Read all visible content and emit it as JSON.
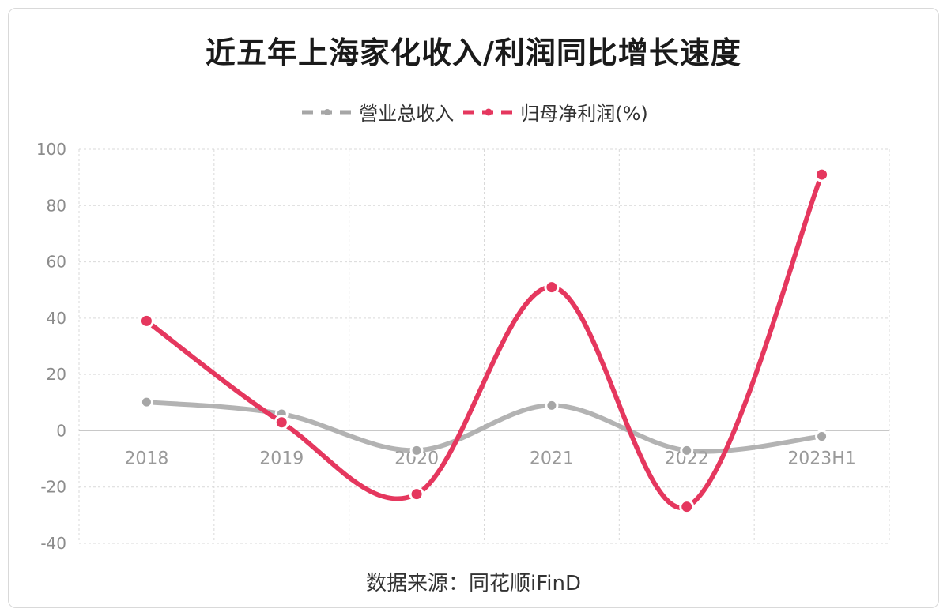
{
  "chart_data": {
    "type": "line",
    "title": "近五年上海家化收入/利润同比增长速度",
    "categories": [
      "2018",
      "2019",
      "2020",
      "2021",
      "2022",
      "2023H1"
    ],
    "series": [
      {
        "name": "營业总收入",
        "values": [
          10.2,
          6.0,
          -7.0,
          9.0,
          -7.0,
          -2.0
        ],
        "color": "#a6a6a6",
        "style": "smooth-dashed-marker"
      },
      {
        "name": "归母净利润(%)",
        "values": [
          39.0,
          3.0,
          -22.5,
          51.0,
          -27.0,
          91.0
        ],
        "color": "#e5375e",
        "style": "smooth-marker"
      }
    ],
    "ylim": [
      -40,
      100
    ],
    "yticks": [
      -40,
      -20,
      0,
      20,
      40,
      60,
      80,
      100
    ],
    "grid": true,
    "legend_position": "top-center",
    "source": "数据来源：同花顺iFinD"
  }
}
